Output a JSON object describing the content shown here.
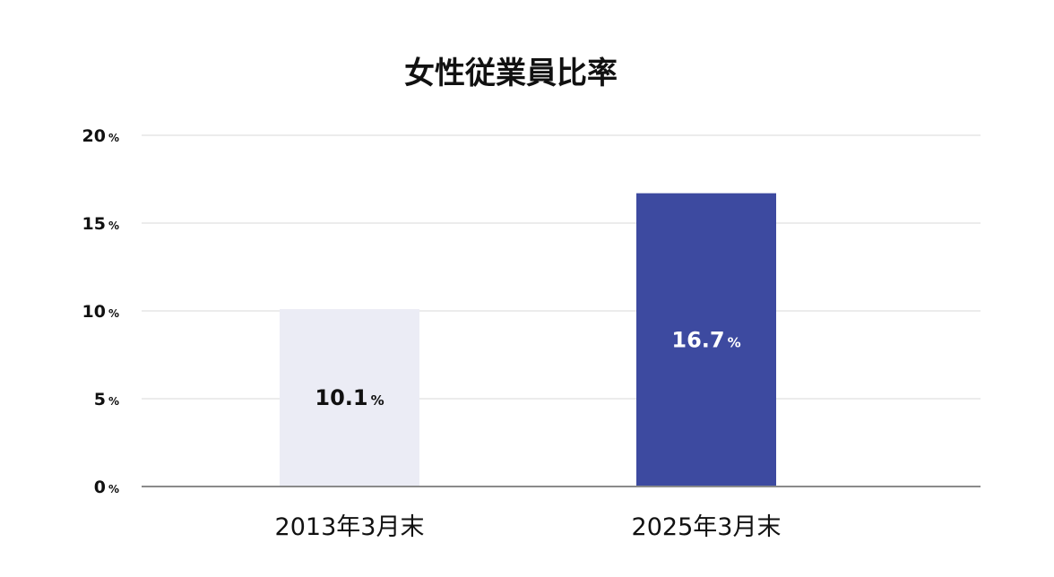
{
  "chart_data": {
    "type": "bar",
    "title": "女性従業員比率",
    "categories": [
      "2013年3月末",
      "2025年3月末"
    ],
    "values": [
      10.1,
      16.7
    ],
    "value_labels": [
      {
        "number": "10.1",
        "unit": "%"
      },
      {
        "number": "16.7",
        "unit": "%"
      }
    ],
    "ylim": [
      0,
      20
    ],
    "y_ticks": [
      {
        "value": 0,
        "label": "0",
        "unit": "%"
      },
      {
        "value": 5,
        "label": "5",
        "unit": "%"
      },
      {
        "value": 10,
        "label": "10",
        "unit": "%"
      },
      {
        "value": 15,
        "label": "15",
        "unit": "%"
      },
      {
        "value": 20,
        "label": "20",
        "unit": "%"
      }
    ],
    "xlabel": "",
    "ylabel": "",
    "grid": true,
    "legend": "none",
    "colors": {
      "bars": [
        "#ebecf5",
        "#3d4aa0"
      ],
      "label_text": [
        "#111111",
        "#ffffff"
      ],
      "grid": "#e6e6e6",
      "axis": "#8a8a8a"
    }
  }
}
